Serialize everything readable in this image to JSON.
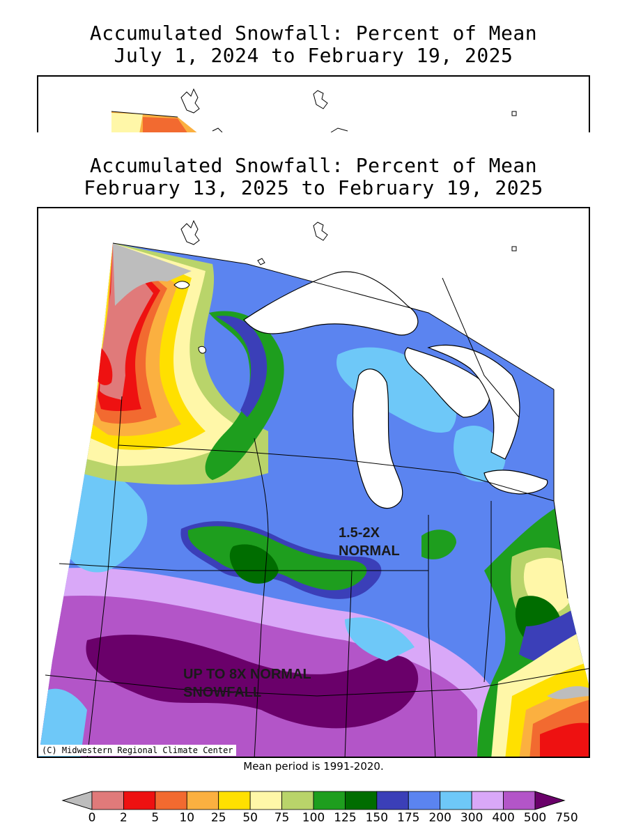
{
  "header": {
    "title_top_line1": "Accumulated Snowfall: Percent of Mean",
    "title_top_line2": "July 1, 2024 to February 19, 2025",
    "title_main_line1": "Accumulated Snowfall: Percent of Mean",
    "title_main_line2": "February 13, 2025 to February 19, 2025"
  },
  "map": {
    "credit": "(C) Midwestern Regional Climate Center",
    "mean_period_note": "Mean period is 1991-2020.",
    "annotation_center_line1": "1.5-2X",
    "annotation_center_line2": "NORMAL",
    "annotation_south_line1": "UP TO 8X NORMAL",
    "annotation_south_line2": "SNOWFALL"
  },
  "legend": {
    "labels": [
      "0",
      "2",
      "5",
      "10",
      "25",
      "50",
      "75",
      "100",
      "125",
      "150",
      "175",
      "200",
      "300",
      "400",
      "500",
      "750"
    ],
    "colors": [
      "#bdbdbd",
      "#e07a7a",
      "#ee1111",
      "#f26a30",
      "#fbb040",
      "#ffe000",
      "#fff7a8",
      "#b9d46a",
      "#1e9e1e",
      "#006d00",
      "#3b3fb8",
      "#5b84f0",
      "#6ec8f8",
      "#d9a8f8",
      "#b355c8",
      "#6a006a"
    ]
  }
}
